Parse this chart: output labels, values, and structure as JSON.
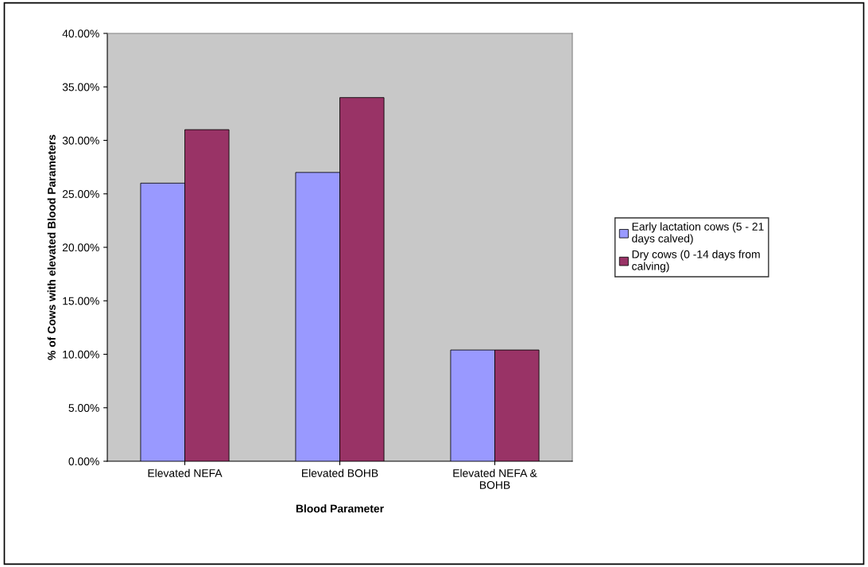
{
  "chart_data": {
    "type": "bar",
    "xlabel": "Blood Parameter",
    "ylabel": "% of Cows with elevated Blood Parameters",
    "categories": [
      "Elevated NEFA",
      "Elevated BOHB",
      "Elevated NEFA &\nBOHB"
    ],
    "series": [
      {
        "name": "Early lactation cows (5 - 21\ndays calved)",
        "color": "#9999ff",
        "values": [
          0.26,
          0.27,
          0.104
        ]
      },
      {
        "name": "Dry cows (0 -14 days from\ncalving)",
        "color": "#993366",
        "values": [
          0.31,
          0.34,
          0.104
        ]
      }
    ],
    "ylim": [
      0,
      0.4
    ],
    "yticks": [
      {
        "value": 0,
        "label": "0.00%"
      },
      {
        "value": 0.05,
        "label": "5.00%"
      },
      {
        "value": 0.1,
        "label": "10.00%"
      },
      {
        "value": 0.15,
        "label": "15.00%"
      },
      {
        "value": 0.2,
        "label": "20.00%"
      },
      {
        "value": 0.25,
        "label": "25.00%"
      },
      {
        "value": 0.3,
        "label": "30.00%"
      },
      {
        "value": 0.35,
        "label": "35.00%"
      },
      {
        "value": 0.4,
        "label": "40.00%"
      }
    ],
    "grid": false,
    "legend": "right"
  }
}
